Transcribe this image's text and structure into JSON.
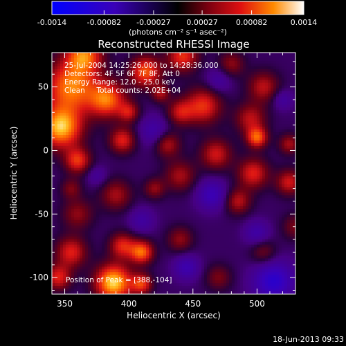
{
  "chart_data": {
    "type": "heatmap",
    "title": "Reconstructed RHESSI Image",
    "xlabel": "Heliocentric X (arcsec)",
    "ylabel": "Heliocentric Y (arcsec)",
    "xlim": [
      340,
      530
    ],
    "ylim": [
      -113,
      77
    ],
    "x_ticks": [
      350,
      400,
      450,
      500
    ],
    "y_ticks": [
      -100,
      -50,
      0,
      50
    ],
    "colorbar": {
      "range": [
        -0.0014,
        0.0014
      ],
      "ticks": [
        "-0.0014",
        "-0.00082",
        "-0.00027",
        "0.00027",
        "0.00082",
        "0.0014"
      ],
      "unit_label": "(photons cm⁻² s⁻¹ asec⁻²)"
    },
    "annotations": [
      "25-Jul-2004 14:25:26.000 to 14:28:36.000",
      "Detectors: 4F 5F 6F 7F 8F, Att 0",
      "Energy Range: 12.0 - 25.0 keV",
      "Clean     Total counts: 2.02E+04"
    ],
    "peak_label": "Position of Peak = [388,-104]",
    "peak": {
      "x": 388,
      "y": -104
    },
    "blobs": [
      {
        "x": 388,
        "y": -104,
        "r": 14,
        "v": 1.0
      },
      {
        "x": 347,
        "y": 18,
        "r": 16,
        "v": 0.95
      },
      {
        "x": 355,
        "y": 50,
        "r": 20,
        "v": 0.8
      },
      {
        "x": 383,
        "y": 40,
        "r": 14,
        "v": 0.75
      },
      {
        "x": 365,
        "y": 75,
        "r": 14,
        "v": 0.75
      },
      {
        "x": 413,
        "y": 62,
        "r": 12,
        "v": 0.7
      },
      {
        "x": 442,
        "y": 74,
        "r": 12,
        "v": 0.6
      },
      {
        "x": 360,
        "y": -8,
        "r": 10,
        "v": 0.6
      },
      {
        "x": 395,
        "y": 8,
        "r": 10,
        "v": 0.55
      },
      {
        "x": 430,
        "y": 5,
        "r": 10,
        "v": 0.45
      },
      {
        "x": 458,
        "y": 35,
        "r": 14,
        "v": 0.6
      },
      {
        "x": 440,
        "y": 30,
        "r": 10,
        "v": 0.45
      },
      {
        "x": 495,
        "y": 25,
        "r": 12,
        "v": 0.45
      },
      {
        "x": 505,
        "y": 50,
        "r": 12,
        "v": 0.45
      },
      {
        "x": 500,
        "y": 10,
        "r": 8,
        "v": 0.7
      },
      {
        "x": 468,
        "y": -3,
        "r": 12,
        "v": 0.5
      },
      {
        "x": 497,
        "y": -18,
        "r": 12,
        "v": 0.55
      },
      {
        "x": 485,
        "y": -40,
        "r": 10,
        "v": 0.45
      },
      {
        "x": 525,
        "y": -25,
        "r": 10,
        "v": 0.5
      },
      {
        "x": 525,
        "y": 5,
        "r": 8,
        "v": 0.4
      },
      {
        "x": 390,
        "y": -35,
        "r": 12,
        "v": 0.4
      },
      {
        "x": 440,
        "y": -20,
        "r": 12,
        "v": 0.4
      },
      {
        "x": 420,
        "y": -30,
        "r": 8,
        "v": 0.35
      },
      {
        "x": 360,
        "y": -50,
        "r": 12,
        "v": 0.35
      },
      {
        "x": 355,
        "y": -80,
        "r": 12,
        "v": 0.55
      },
      {
        "x": 395,
        "y": -75,
        "r": 10,
        "v": 0.55
      },
      {
        "x": 410,
        "y": -80,
        "r": 9,
        "v": 0.75
      },
      {
        "x": 345,
        "y": -100,
        "r": 10,
        "v": 0.55
      },
      {
        "x": 410,
        "y": -105,
        "r": 8,
        "v": 0.6
      },
      {
        "x": 440,
        "y": -70,
        "r": 10,
        "v": 0.35
      },
      {
        "x": 470,
        "y": -100,
        "r": 10,
        "v": 0.3
      },
      {
        "x": 355,
        "y": -30,
        "r": 8,
        "v": 0.3
      },
      {
        "x": 480,
        "y": 68,
        "r": 10,
        "v": 0.35
      },
      {
        "x": 505,
        "y": -80,
        "r": 10,
        "v": 0.3
      },
      {
        "x": 530,
        "y": -60,
        "r": 10,
        "v": 0.3
      },
      {
        "x": 400,
        "y": 30,
        "r": 8,
        "v": 0.45
      },
      {
        "x": 425,
        "y": 45,
        "r": 7,
        "v": 0.4
      }
    ],
    "dips": [
      {
        "x": 513,
        "y": -103,
        "r": 16,
        "v": -0.55
      },
      {
        "x": 420,
        "y": 15,
        "r": 12,
        "v": -0.3
      },
      {
        "x": 465,
        "y": -35,
        "r": 12,
        "v": -0.4
      },
      {
        "x": 445,
        "y": -92,
        "r": 10,
        "v": -0.35
      },
      {
        "x": 500,
        "y": -65,
        "r": 10,
        "v": -0.3
      },
      {
        "x": 470,
        "y": 55,
        "r": 10,
        "v": -0.25
      },
      {
        "x": 410,
        "y": -55,
        "r": 10,
        "v": -0.25
      },
      {
        "x": 375,
        "y": -20,
        "r": 8,
        "v": -0.2
      },
      {
        "x": 520,
        "y": 40,
        "r": 8,
        "v": -0.25
      }
    ]
  },
  "footer": {
    "timestamp": "18-Jun-2013 09:33"
  }
}
